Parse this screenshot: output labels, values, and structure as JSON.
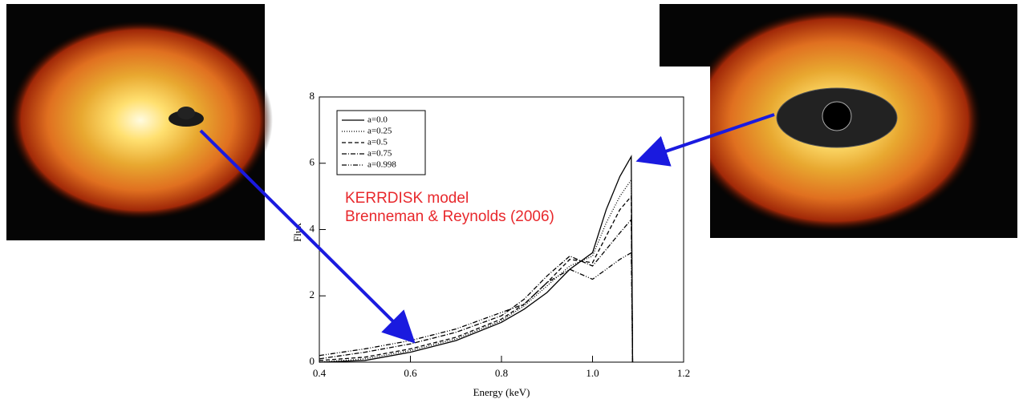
{
  "chart_data": {
    "type": "line",
    "x_label": "Energy (keV)",
    "y_label": "Flux",
    "annotations": [
      "KERRDISK model",
      "Brenneman & Reynolds (2006)"
    ],
    "x": [
      0.4,
      0.5,
      0.6,
      0.7,
      0.8,
      0.85,
      0.9,
      0.95,
      1.0,
      1.03,
      1.06,
      1.085,
      1.088
    ],
    "series": [
      {
        "name": "a=0.0",
        "color": "#000000",
        "dash": "none",
        "values": [
          0.0,
          0.05,
          0.3,
          0.65,
          1.2,
          1.6,
          2.1,
          2.8,
          3.3,
          4.6,
          5.6,
          6.2,
          0
        ]
      },
      {
        "name": "a=0.25",
        "color": "#000000",
        "dash": "1 2",
        "values": [
          0.0,
          0.1,
          0.35,
          0.7,
          1.25,
          1.7,
          2.3,
          2.9,
          3.2,
          4.2,
          5.0,
          5.5,
          0
        ]
      },
      {
        "name": "a=0.5",
        "color": "#000000",
        "dash": "5 3",
        "values": [
          0.05,
          0.15,
          0.4,
          0.75,
          1.3,
          1.75,
          2.4,
          3.1,
          3.0,
          3.8,
          4.6,
          5.0,
          0
        ]
      },
      {
        "name": "a=0.75",
        "color": "#000000",
        "dash": "6 2 1 2",
        "values": [
          0.1,
          0.3,
          0.55,
          0.9,
          1.4,
          1.9,
          2.6,
          3.2,
          2.9,
          3.4,
          3.9,
          4.3,
          0
        ]
      },
      {
        "name": "a=0.998",
        "color": "#000000",
        "dash": "6 2 1 2 1 2",
        "values": [
          0.2,
          0.4,
          0.65,
          1.0,
          1.5,
          1.75,
          2.4,
          2.8,
          2.5,
          2.8,
          3.1,
          3.3,
          0
        ]
      }
    ],
    "xlim": [
      0.4,
      1.2
    ],
    "xticks": [
      0.4,
      0.6,
      0.8,
      {
        "value": 1.0,
        "label": "1.0"
      },
      1.2
    ],
    "ylim": [
      0,
      8
    ],
    "yticks": [
      0,
      2,
      4,
      6,
      8
    ]
  }
}
